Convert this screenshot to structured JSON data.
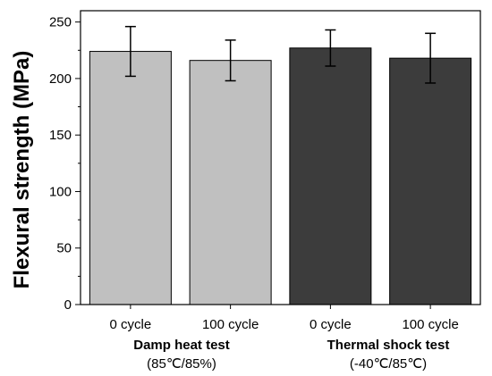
{
  "chart_data": {
    "type": "bar",
    "title": "",
    "xlabel": "",
    "ylabel": "Flexural strength (MPa)",
    "ylim": [
      0,
      260
    ],
    "yticks": [
      0,
      50,
      100,
      150,
      200,
      250
    ],
    "grid": false,
    "categories": [
      "0 cycle",
      "100 cycle",
      "0 cycle",
      "100 cycle"
    ],
    "values": [
      224,
      216,
      227,
      218
    ],
    "errors": [
      22,
      18,
      16,
      22
    ],
    "colors": [
      "#c0c0c0",
      "#c0c0c0",
      "#3c3c3c",
      "#3c3c3c"
    ],
    "groups": [
      {
        "label": "Damp heat test",
        "sublabel": "(85℃/85%)"
      },
      {
        "label": "Thermal shock test",
        "sublabel": "(-40℃/85℃)"
      }
    ]
  }
}
